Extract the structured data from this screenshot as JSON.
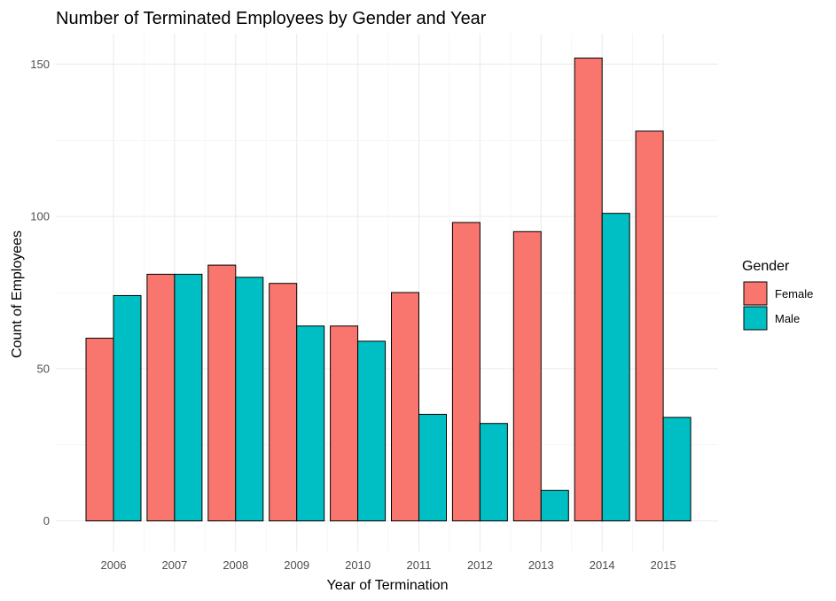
{
  "chart_data": {
    "type": "bar",
    "title": "Number of Terminated Employees by Gender and Year",
    "xlabel": "Year of Termination",
    "ylabel": "Count of Employees",
    "categories": [
      "2006",
      "2007",
      "2008",
      "2009",
      "2010",
      "2011",
      "2012",
      "2013",
      "2014",
      "2015"
    ],
    "series": [
      {
        "name": "Female",
        "color": "#F8766D",
        "values": [
          60,
          81,
          84,
          78,
          64,
          75,
          98,
          95,
          152,
          128
        ]
      },
      {
        "name": "Male",
        "color": "#00BFC4",
        "values": [
          74,
          81,
          80,
          64,
          59,
          35,
          32,
          10,
          101,
          34
        ]
      }
    ],
    "ylim": [
      -10,
      160
    ],
    "yticks": [
      0,
      50,
      100,
      150
    ],
    "grid": true,
    "legend": {
      "title": "Gender",
      "position": "right"
    }
  }
}
